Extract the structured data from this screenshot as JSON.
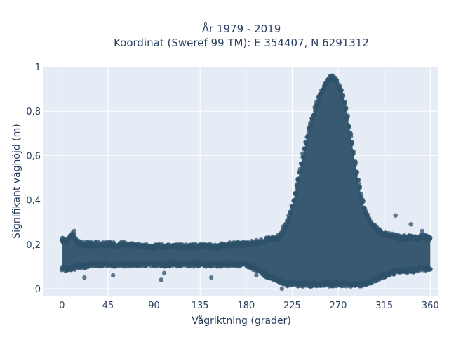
{
  "chart_data": {
    "type": "scatter",
    "title_lines": [
      "År 1979 - 2019",
      "Koordinat (Sweref 99 TM): E 354407, N 6291312"
    ],
    "xlabel": "Vågriktning (grader)",
    "ylabel": "Signifikant våghöjd (m)",
    "xlim": [
      -18,
      368
    ],
    "ylim": [
      -0.035,
      1.0
    ],
    "x_ticks": [
      0,
      45,
      90,
      135,
      180,
      225,
      270,
      315,
      360
    ],
    "x_tick_labels": [
      "0",
      "45",
      "90",
      "135",
      "180",
      "225",
      "270",
      "315",
      "360"
    ],
    "y_ticks": [
      0,
      0.2,
      0.4,
      0.6,
      0.8,
      1
    ],
    "y_tick_labels": [
      "0",
      "0,2",
      "0,4",
      "0,6",
      "0,8",
      "1"
    ],
    "grid": true,
    "legend": "none",
    "colors": {
      "plot_background": "#e5ecf6",
      "grid": "#ffffff",
      "marker": "#2e5169",
      "text": "#2a3f5f"
    },
    "series": [
      {
        "x": [
          0,
          5,
          10,
          15,
          20,
          30,
          45,
          60,
          75,
          90,
          105,
          120,
          135,
          150,
          165,
          180,
          190,
          200,
          210,
          215,
          220,
          225,
          230,
          235,
          240,
          245,
          250,
          255,
          258,
          260,
          262,
          265,
          268,
          270,
          273,
          276,
          280,
          285,
          290,
          295,
          300,
          305,
          310,
          315,
          320,
          330,
          340,
          350,
          355,
          360
        ],
        "y_max": [
          0.23,
          0.22,
          0.26,
          0.22,
          0.21,
          0.21,
          0.21,
          0.21,
          0.2,
          0.2,
          0.2,
          0.2,
          0.2,
          0.2,
          0.21,
          0.21,
          0.22,
          0.23,
          0.24,
          0.26,
          0.3,
          0.38,
          0.48,
          0.6,
          0.7,
          0.78,
          0.86,
          0.91,
          0.93,
          0.95,
          0.96,
          0.96,
          0.95,
          0.93,
          0.9,
          0.85,
          0.76,
          0.62,
          0.48,
          0.38,
          0.32,
          0.29,
          0.27,
          0.26,
          0.25,
          0.24,
          0.24,
          0.24,
          0.25,
          0.23
        ],
        "y_min": [
          0.08,
          0.08,
          0.08,
          0.09,
          0.09,
          0.1,
          0.1,
          0.1,
          0.1,
          0.1,
          0.1,
          0.1,
          0.1,
          0.1,
          0.1,
          0.1,
          0.08,
          0.05,
          0.03,
          0.02,
          0.01,
          0.01,
          0.01,
          0.01,
          0.01,
          0.01,
          0.01,
          0.01,
          0.01,
          0.01,
          0.01,
          0.01,
          0.01,
          0.01,
          0.01,
          0.01,
          0.01,
          0.01,
          0.01,
          0.01,
          0.02,
          0.03,
          0.04,
          0.05,
          0.06,
          0.07,
          0.07,
          0.08,
          0.08,
          0.08
        ]
      }
    ],
    "outliers": [
      {
        "x": 12,
        "y": 0.26
      },
      {
        "x": 22,
        "y": 0.05
      },
      {
        "x": 50,
        "y": 0.06
      },
      {
        "x": 97,
        "y": 0.04
      },
      {
        "x": 100,
        "y": 0.07
      },
      {
        "x": 146,
        "y": 0.05
      },
      {
        "x": 190,
        "y": 0.06
      },
      {
        "x": 215,
        "y": 0.0
      },
      {
        "x": 216,
        "y": 0.28
      },
      {
        "x": 326,
        "y": 0.33
      },
      {
        "x": 341,
        "y": 0.29
      },
      {
        "x": 352,
        "y": 0.26
      }
    ]
  }
}
